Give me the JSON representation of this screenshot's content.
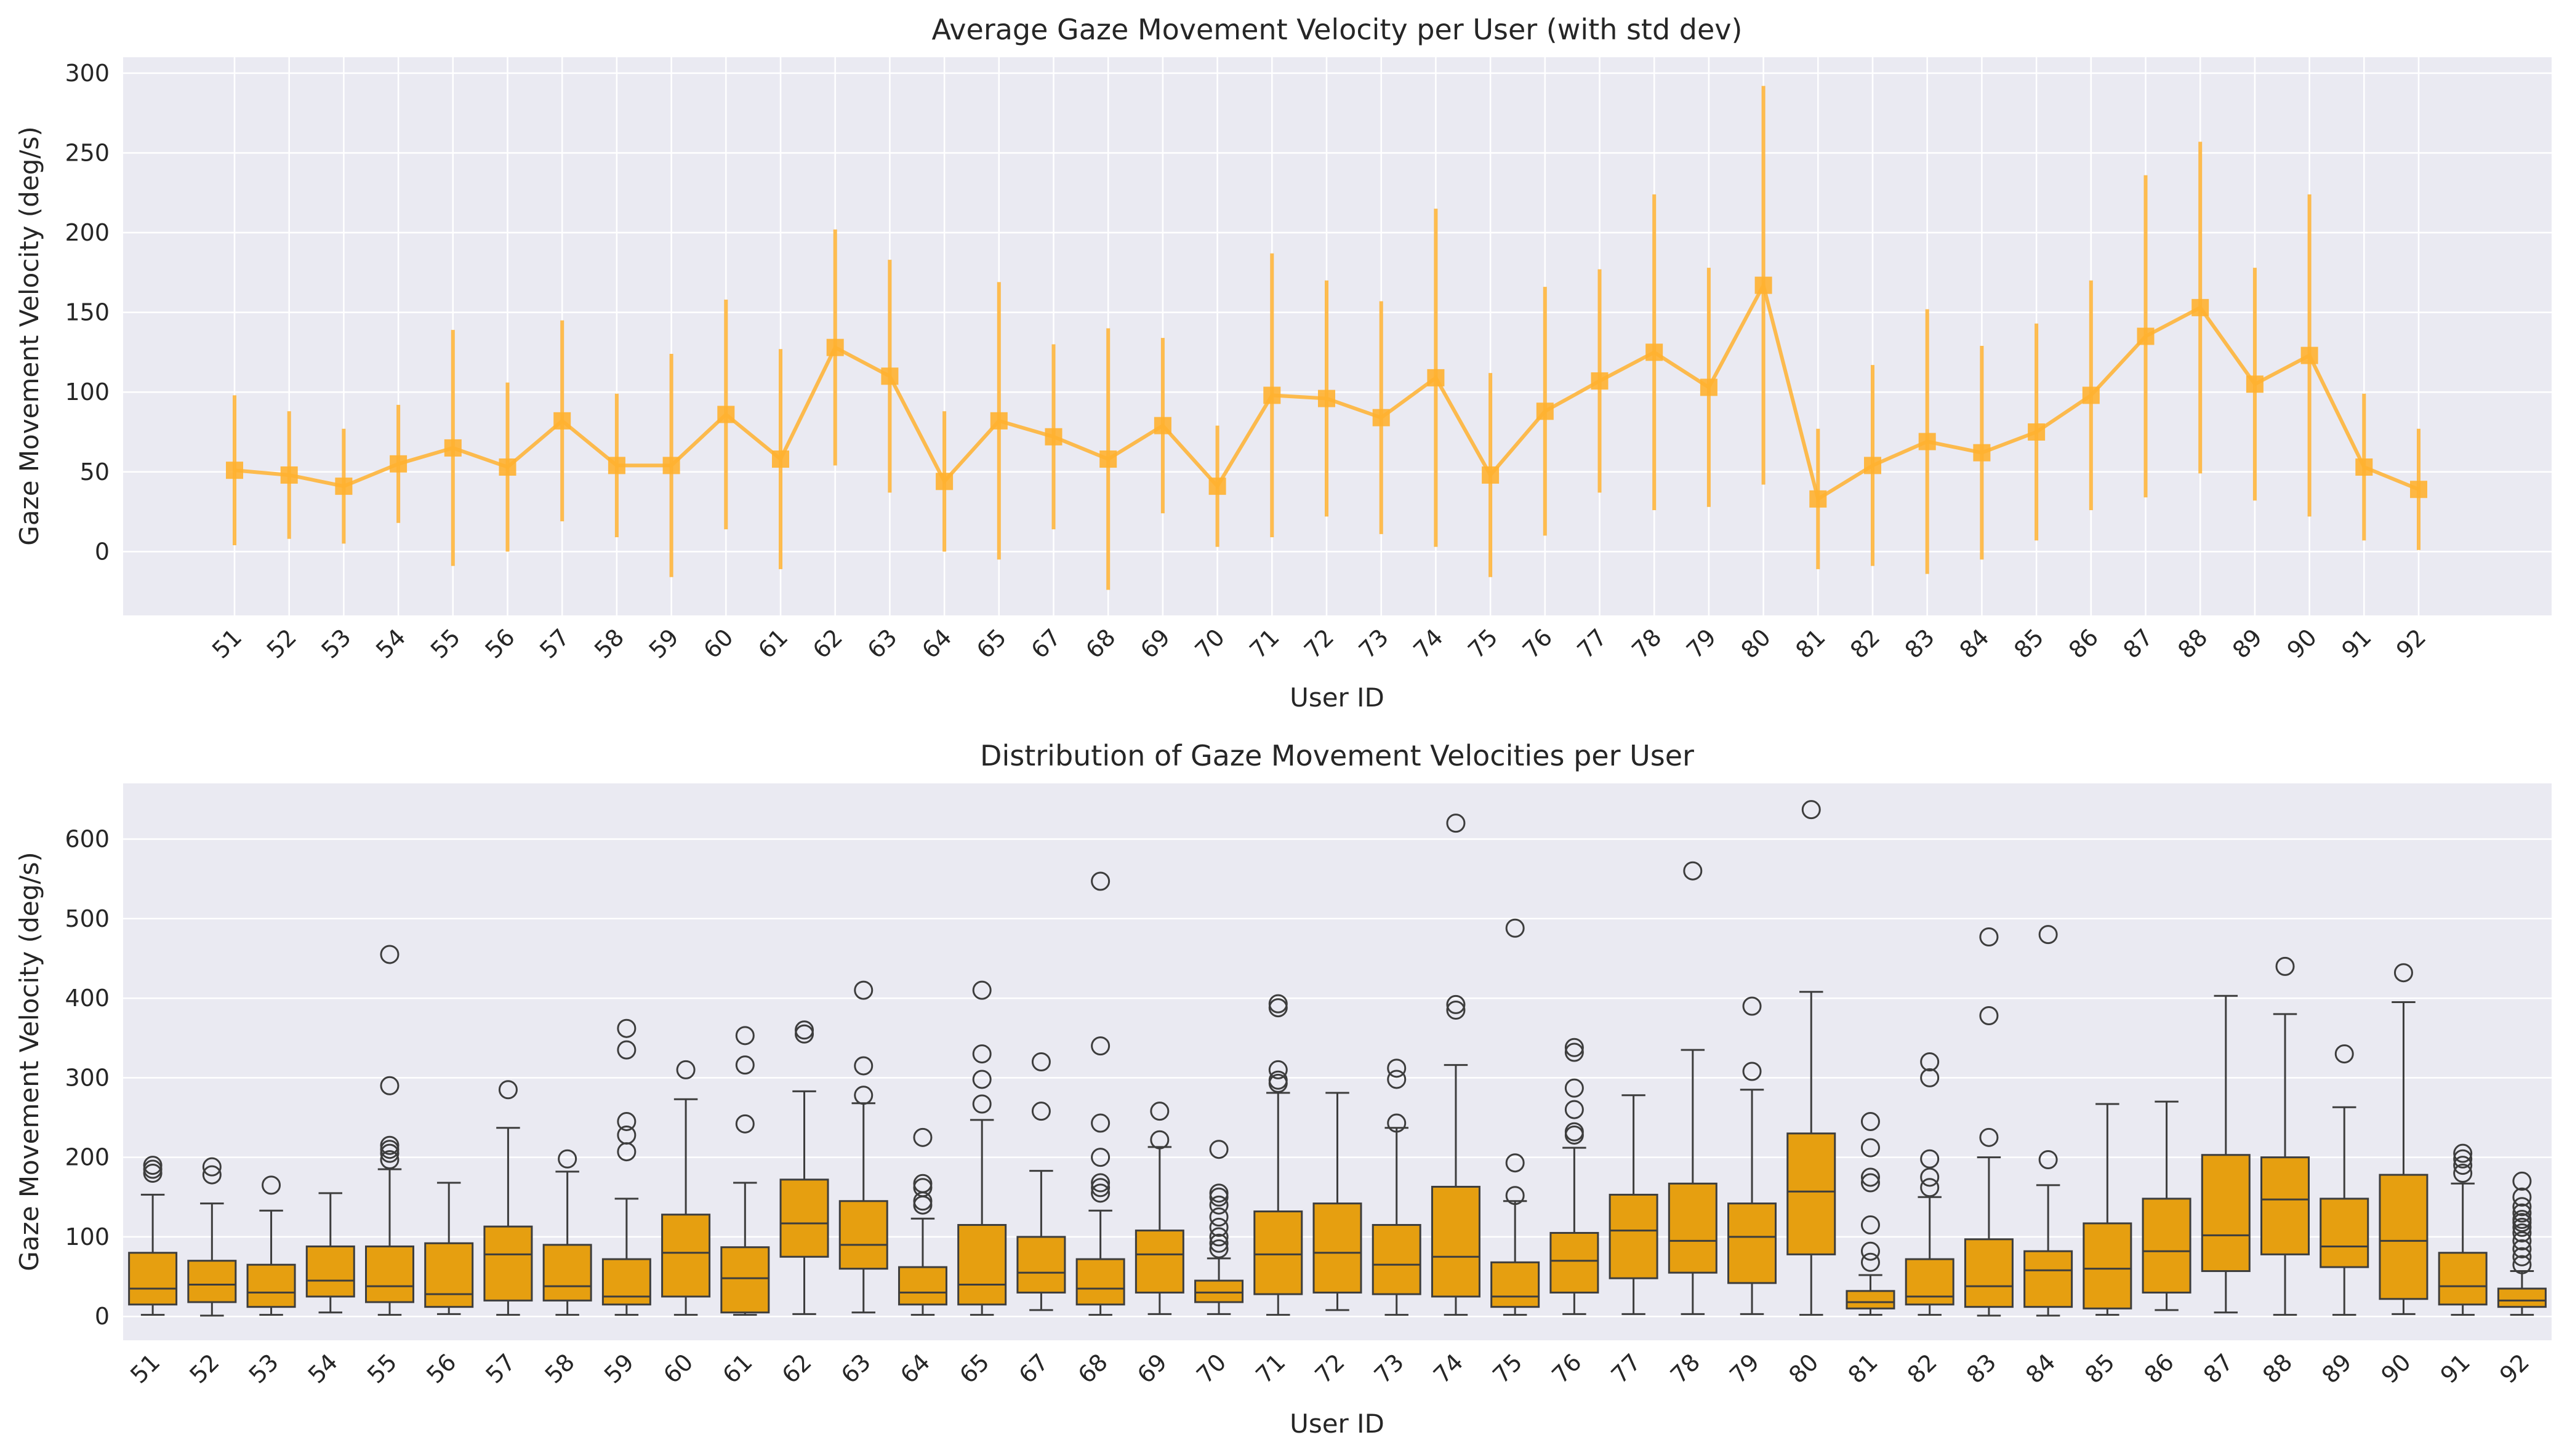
{
  "chart_data": [
    {
      "type": "line",
      "title": "Average Gaze Movement Velocity per User (with std dev)",
      "xlabel": "User ID",
      "ylabel": "Gaze Movement Velocity (deg/s)",
      "ylim": [
        -40,
        310
      ],
      "yticks": [
        0,
        50,
        100,
        150,
        200,
        250,
        300
      ],
      "grid": true,
      "color": "#FFB130",
      "categories": [
        "51",
        "52",
        "53",
        "54",
        "55",
        "56",
        "57",
        "58",
        "59",
        "60",
        "61",
        "62",
        "63",
        "64",
        "65",
        "67",
        "68",
        "69",
        "70",
        "71",
        "72",
        "73",
        "74",
        "75",
        "76",
        "77",
        "78",
        "79",
        "80",
        "81",
        "82",
        "83",
        "84",
        "85",
        "86",
        "87",
        "88",
        "89",
        "90",
        "91",
        "92"
      ],
      "mean": [
        51,
        48,
        41,
        55,
        65,
        53,
        82,
        54,
        54,
        86,
        58,
        128,
        110,
        44,
        82,
        72,
        58,
        79,
        41,
        98,
        96,
        84,
        109,
        48,
        88,
        107,
        125,
        103,
        167,
        33,
        54,
        69,
        62,
        75,
        98,
        135,
        153,
        105,
        123,
        53,
        39
      ],
      "std": [
        47,
        40,
        36,
        37,
        74,
        53,
        63,
        45,
        70,
        72,
        69,
        74,
        73,
        44,
        87,
        58,
        82,
        55,
        38,
        89,
        74,
        73,
        106,
        64,
        78,
        70,
        99,
        75,
        125,
        44,
        63,
        83,
        67,
        68,
        72,
        101,
        104,
        73,
        101,
        46,
        38
      ]
    },
    {
      "type": "box",
      "title": "Distribution of Gaze Movement Velocities per User",
      "xlabel": "User ID",
      "ylabel": "Gaze Movement Velocity (deg/s)",
      "ylim": [
        -30,
        670
      ],
      "yticks": [
        0,
        100,
        200,
        300,
        400,
        500,
        600
      ],
      "grid": true,
      "color": "#E69F10",
      "categories": [
        "51",
        "52",
        "53",
        "54",
        "55",
        "56",
        "57",
        "58",
        "59",
        "60",
        "61",
        "62",
        "63",
        "64",
        "65",
        "67",
        "68",
        "69",
        "70",
        "71",
        "72",
        "73",
        "74",
        "75",
        "76",
        "77",
        "78",
        "79",
        "80",
        "81",
        "82",
        "83",
        "84",
        "85",
        "86",
        "87",
        "88",
        "89",
        "90",
        "91",
        "92"
      ],
      "boxes": [
        {
          "wl": 2,
          "q1": 15,
          "med": 35,
          "q3": 80,
          "wh": 153,
          "out": [
            180,
            185,
            190
          ]
        },
        {
          "wl": 1,
          "q1": 18,
          "med": 40,
          "q3": 70,
          "wh": 142,
          "out": [
            178,
            188
          ]
        },
        {
          "wl": 2,
          "q1": 12,
          "med": 30,
          "q3": 65,
          "wh": 133,
          "out": [
            165
          ]
        },
        {
          "wl": 5,
          "q1": 25,
          "med": 45,
          "q3": 88,
          "wh": 155,
          "out": []
        },
        {
          "wl": 2,
          "q1": 18,
          "med": 38,
          "q3": 88,
          "wh": 185,
          "out": [
            197,
            205,
            210,
            215,
            290,
            455
          ]
        },
        {
          "wl": 3,
          "q1": 12,
          "med": 28,
          "q3": 92,
          "wh": 168,
          "out": []
        },
        {
          "wl": 2,
          "q1": 20,
          "med": 78,
          "q3": 113,
          "wh": 237,
          "out": [
            285
          ]
        },
        {
          "wl": 2,
          "q1": 20,
          "med": 38,
          "q3": 90,
          "wh": 182,
          "out": [
            198
          ]
        },
        {
          "wl": 2,
          "q1": 15,
          "med": 25,
          "q3": 72,
          "wh": 148,
          "out": [
            207,
            228,
            245,
            335,
            362
          ]
        },
        {
          "wl": 2,
          "q1": 25,
          "med": 80,
          "q3": 128,
          "wh": 273,
          "out": [
            310
          ]
        },
        {
          "wl": 2,
          "q1": 5,
          "med": 48,
          "q3": 87,
          "wh": 168,
          "out": [
            242,
            316,
            353
          ]
        },
        {
          "wl": 3,
          "q1": 75,
          "med": 117,
          "q3": 172,
          "wh": 283,
          "out": [
            355,
            360
          ]
        },
        {
          "wl": 5,
          "q1": 60,
          "med": 90,
          "q3": 145,
          "wh": 268,
          "out": [
            278,
            315,
            410
          ]
        },
        {
          "wl": 2,
          "q1": 15,
          "med": 30,
          "q3": 62,
          "wh": 123,
          "out": [
            140,
            145,
            162,
            167,
            225
          ]
        },
        {
          "wl": 2,
          "q1": 15,
          "med": 40,
          "q3": 115,
          "wh": 247,
          "out": [
            267,
            298,
            330,
            410
          ]
        },
        {
          "wl": 8,
          "q1": 30,
          "med": 55,
          "q3": 100,
          "wh": 183,
          "out": [
            258,
            320
          ]
        },
        {
          "wl": 2,
          "q1": 15,
          "med": 35,
          "q3": 72,
          "wh": 133,
          "out": [
            155,
            162,
            168,
            200,
            243,
            340,
            547
          ]
        },
        {
          "wl": 3,
          "q1": 30,
          "med": 78,
          "q3": 108,
          "wh": 213,
          "out": [
            222,
            258
          ]
        },
        {
          "wl": 3,
          "q1": 18,
          "med": 30,
          "q3": 45,
          "wh": 73,
          "out": [
            85,
            92,
            100,
            112,
            125,
            140,
            150,
            155,
            210
          ]
        },
        {
          "wl": 2,
          "q1": 28,
          "med": 78,
          "q3": 132,
          "wh": 281,
          "out": [
            293,
            297,
            310,
            388,
            393
          ]
        },
        {
          "wl": 8,
          "q1": 30,
          "med": 80,
          "q3": 142,
          "wh": 281,
          "out": []
        },
        {
          "wl": 2,
          "q1": 28,
          "med": 65,
          "q3": 115,
          "wh": 237,
          "out": [
            243,
            298,
            312
          ]
        },
        {
          "wl": 2,
          "q1": 25,
          "med": 75,
          "q3": 163,
          "wh": 316,
          "out": [
            385,
            392,
            620
          ]
        },
        {
          "wl": 2,
          "q1": 12,
          "med": 25,
          "q3": 68,
          "wh": 145,
          "out": [
            152,
            193,
            488
          ]
        },
        {
          "wl": 3,
          "q1": 30,
          "med": 70,
          "q3": 105,
          "wh": 212,
          "out": [
            228,
            232,
            260,
            287,
            332,
            338
          ]
        },
        {
          "wl": 3,
          "q1": 48,
          "med": 108,
          "q3": 153,
          "wh": 278,
          "out": []
        },
        {
          "wl": 3,
          "q1": 55,
          "med": 95,
          "q3": 167,
          "wh": 335,
          "out": [
            560
          ]
        },
        {
          "wl": 3,
          "q1": 42,
          "med": 100,
          "q3": 142,
          "wh": 285,
          "out": [
            308,
            390
          ]
        },
        {
          "wl": 2,
          "q1": 78,
          "med": 157,
          "q3": 230,
          "wh": 408,
          "out": [
            637
          ]
        },
        {
          "wl": 2,
          "q1": 10,
          "med": 18,
          "q3": 32,
          "wh": 52,
          "out": [
            68,
            82,
            115,
            168,
            175,
            212,
            245
          ]
        },
        {
          "wl": 2,
          "q1": 15,
          "med": 25,
          "q3": 72,
          "wh": 150,
          "out": [
            162,
            175,
            198,
            300,
            320
          ]
        },
        {
          "wl": 1,
          "q1": 12,
          "med": 38,
          "q3": 97,
          "wh": 200,
          "out": [
            225,
            378,
            477
          ]
        },
        {
          "wl": 1,
          "q1": 12,
          "med": 58,
          "q3": 82,
          "wh": 165,
          "out": [
            197,
            480
          ]
        },
        {
          "wl": 2,
          "q1": 10,
          "med": 60,
          "q3": 117,
          "wh": 267,
          "out": []
        },
        {
          "wl": 8,
          "q1": 30,
          "med": 82,
          "q3": 148,
          "wh": 270,
          "out": []
        },
        {
          "wl": 5,
          "q1": 57,
          "med": 102,
          "q3": 203,
          "wh": 403,
          "out": []
        },
        {
          "wl": 2,
          "q1": 78,
          "med": 147,
          "q3": 200,
          "wh": 380,
          "out": [
            440
          ]
        },
        {
          "wl": 2,
          "q1": 62,
          "med": 88,
          "q3": 148,
          "wh": 263,
          "out": [
            330
          ]
        },
        {
          "wl": 3,
          "q1": 22,
          "med": 95,
          "q3": 178,
          "wh": 395,
          "out": [
            432
          ]
        },
        {
          "wl": 2,
          "q1": 15,
          "med": 38,
          "q3": 80,
          "wh": 167,
          "out": [
            180,
            190,
            198,
            205
          ]
        },
        {
          "wl": 2,
          "q1": 12,
          "med": 20,
          "q3": 35,
          "wh": 57,
          "out": [
            65,
            75,
            85,
            95,
            105,
            112,
            118,
            122,
            130,
            138,
            150,
            170
          ]
        }
      ]
    }
  ]
}
